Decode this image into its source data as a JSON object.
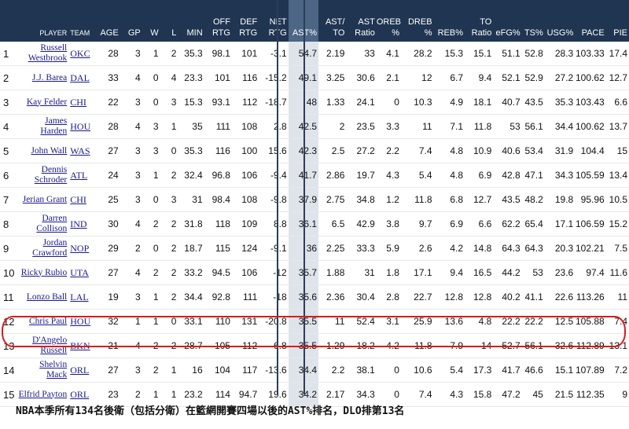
{
  "columns": [
    "",
    "PLAYER",
    "TEAM",
    "AGE",
    "GP",
    "W",
    "L",
    "MIN",
    "OFF RTG",
    "DEF RTG",
    "NET RTG",
    "AST%",
    "AST/ TO",
    "AST Ratio",
    "OREB %",
    "DREB %",
    "REB%",
    "TO Ratio",
    "eFG%",
    "TS%",
    "USG%",
    "PACE",
    "PIE"
  ],
  "rows": [
    [
      "1",
      "Russell Westbrook",
      "OKC",
      "28",
      "3",
      "1",
      "2",
      "35.3",
      "98.1",
      "101",
      "-3.1",
      "54.7",
      "2.19",
      "33",
      "4.1",
      "28.2",
      "15.3",
      "15.1",
      "51.1",
      "52.8",
      "28.3",
      "103.33",
      "17.4"
    ],
    [
      "2",
      "J.J. Barea",
      "DAL",
      "33",
      "4",
      "0",
      "4",
      "23.3",
      "101",
      "116",
      "-15.2",
      "49.1",
      "3.25",
      "30.6",
      "2.1",
      "12",
      "6.7",
      "9.4",
      "52.1",
      "52.9",
      "27.2",
      "100.62",
      "12.7"
    ],
    [
      "3",
      "Kay Felder",
      "CHI",
      "22",
      "3",
      "0",
      "3",
      "15.3",
      "93.1",
      "112",
      "-18.7",
      "48",
      "1.33",
      "24.1",
      "0",
      "10.3",
      "4.9",
      "18.1",
      "40.7",
      "43.5",
      "35.3",
      "103.43",
      "6.6"
    ],
    [
      "4",
      "James Harden",
      "HOU",
      "28",
      "4",
      "3",
      "1",
      "35",
      "111",
      "108",
      "2.8",
      "42.5",
      "2",
      "23.5",
      "3.3",
      "11",
      "7.1",
      "11.8",
      "53",
      "56.1",
      "34.4",
      "100.62",
      "13.7"
    ],
    [
      "5",
      "John Wall",
      "WAS",
      "27",
      "3",
      "3",
      "0",
      "35.3",
      "116",
      "100",
      "15.6",
      "42.3",
      "2.5",
      "27.2",
      "2.2",
      "7.4",
      "4.8",
      "10.9",
      "40.6",
      "53.4",
      "31.9",
      "104.4",
      "15"
    ],
    [
      "6",
      "Dennis Schroder",
      "ATL",
      "24",
      "3",
      "1",
      "2",
      "32.4",
      "96.8",
      "106",
      "-9.4",
      "41.7",
      "2.86",
      "19.7",
      "4.3",
      "5.4",
      "4.8",
      "6.9",
      "42.8",
      "47.1",
      "34.3",
      "105.59",
      "13.4"
    ],
    [
      "7",
      "Jerian Grant",
      "CHI",
      "25",
      "3",
      "0",
      "3",
      "31",
      "98.4",
      "108",
      "-9.8",
      "37.9",
      "2.75",
      "34.8",
      "1.2",
      "11.8",
      "6.8",
      "12.7",
      "43.5",
      "48.2",
      "19.8",
      "95.96",
      "10.5"
    ],
    [
      "8",
      "Darren Collison",
      "IND",
      "30",
      "4",
      "2",
      "2",
      "31.8",
      "118",
      "109",
      "8.8",
      "36.1",
      "6.5",
      "42.9",
      "3.8",
      "9.7",
      "6.9",
      "6.6",
      "62.2",
      "65.4",
      "17.1",
      "106.59",
      "15.2"
    ],
    [
      "9",
      "Jordan Crawford",
      "NOP",
      "29",
      "2",
      "0",
      "2",
      "18.7",
      "115",
      "124",
      "-9.1",
      "36",
      "2.25",
      "33.3",
      "5.9",
      "2.6",
      "4.2",
      "14.8",
      "64.3",
      "64.3",
      "20.3",
      "102.21",
      "7.5"
    ],
    [
      "10",
      "Ricky Rubio",
      "UTA",
      "27",
      "4",
      "2",
      "2",
      "33.2",
      "94.5",
      "106",
      "-12",
      "35.7",
      "1.88",
      "31",
      "1.8",
      "17.1",
      "9.4",
      "16.5",
      "44.2",
      "53",
      "23.6",
      "97.4",
      "11.6"
    ],
    [
      "11",
      "Lonzo Ball",
      "LAL",
      "19",
      "3",
      "1",
      "2",
      "34.4",
      "92.8",
      "111",
      "-18",
      "35.6",
      "2.36",
      "30.4",
      "2.8",
      "22.7",
      "12.8",
      "12.8",
      "40.2",
      "41.1",
      "22.6",
      "113.26",
      "11"
    ],
    [
      "12",
      "Chris Paul",
      "HOU",
      "32",
      "1",
      "1",
      "0",
      "33.1",
      "110",
      "131",
      "-20.8",
      "35.5",
      "11",
      "52.4",
      "3.1",
      "25.9",
      "13.6",
      "4.8",
      "22.2",
      "22.2",
      "12.5",
      "105.88",
      "7.4"
    ],
    [
      "13",
      "D'Angelo Russell",
      "BKN",
      "21",
      "4",
      "2",
      "2",
      "28.7",
      "105",
      "112",
      "-6.8",
      "35.5",
      "1.29",
      "18.2",
      "4.2",
      "11.8",
      "7.9",
      "14",
      "52.7",
      "56.1",
      "32.6",
      "112.89",
      "13.1"
    ],
    [
      "14",
      "Shelvin Mack",
      "ORL",
      "27",
      "3",
      "2",
      "1",
      "16",
      "104",
      "117",
      "-13.6",
      "34.4",
      "2.2",
      "38.1",
      "0",
      "10.6",
      "5.4",
      "17.3",
      "41.7",
      "46.6",
      "15.1",
      "107.89",
      "7.2"
    ],
    [
      "15",
      "Elfrid Payton",
      "ORL",
      "23",
      "2",
      "1",
      "1",
      "23.2",
      "114",
      "94.7",
      "19.6",
      "34.2",
      "2.17",
      "34.3",
      "0",
      "7.4",
      "4.3",
      "15.8",
      "47.2",
      "45",
      "21.5",
      "112.35",
      "9"
    ]
  ],
  "caption": "NBA本季所有134名後衛（包括分衛）在籃網開賽四場以後的AST%排名，DLO排第13名",
  "colors": {
    "header_bg": "#1f3552",
    "highlight_col": "#dfe3ea",
    "oval": "#d81b1b",
    "link": "#1a1a8c"
  }
}
